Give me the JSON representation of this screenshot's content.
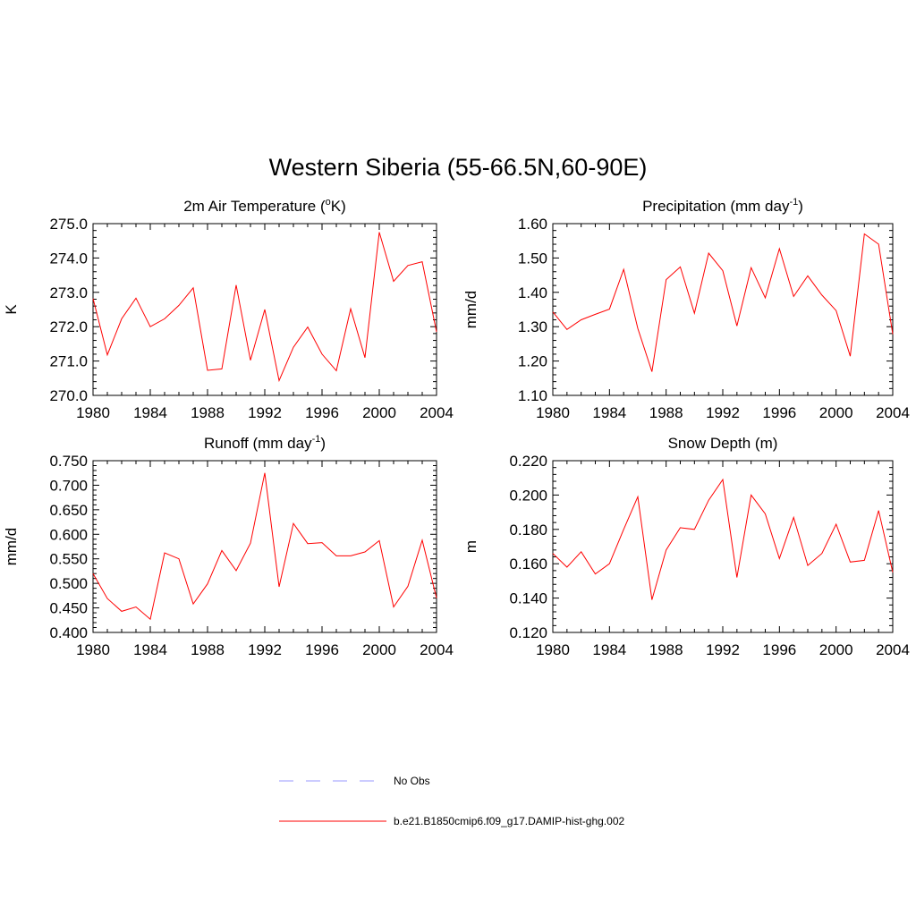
{
  "figure": {
    "title": "Western Siberia (55-66.5N,60-90E)"
  },
  "legend": {
    "entries": [
      {
        "label": "No Obs",
        "color": "#9999ff",
        "dash": "dashed"
      },
      {
        "label": "b.e21.B1850cmip6.f09_g17.DAMIP-hist-ghg.002",
        "color": "#ff0000",
        "dash": "solid"
      }
    ]
  },
  "chart_data": [
    {
      "type": "line",
      "panel": "top-left",
      "title_main": "2m Air Temperature (",
      "title_sup_pre": "o",
      "title_mid": "K",
      "title_sup_post": "",
      "title_end": ")",
      "xlabel": "",
      "ylabel": "K",
      "xlim": [
        1980,
        2004
      ],
      "ylim": [
        270.0,
        275.0
      ],
      "xticks": [
        "1980",
        "1984",
        "1988",
        "1992",
        "1996",
        "2000",
        "2004"
      ],
      "yticks": [
        "270.0",
        "271.0",
        "272.0",
        "273.0",
        "274.0",
        "275.0"
      ],
      "x": [
        1980,
        1981,
        1982,
        1983,
        1984,
        1985,
        1986,
        1987,
        1988,
        1989,
        1990,
        1991,
        1992,
        1993,
        1994,
        1995,
        1996,
        1997,
        1998,
        1999,
        2000,
        2001,
        2002,
        2003,
        2004
      ],
      "series": [
        {
          "name": "b.e21.B1850cmip6.f09_g17.DAMIP-hist-ghg.002",
          "color": "#ff0000",
          "values": [
            272.82,
            271.18,
            272.23,
            272.83,
            272.0,
            272.23,
            272.62,
            273.13,
            270.73,
            270.77,
            273.21,
            271.02,
            272.5,
            270.43,
            271.4,
            271.99,
            271.2,
            270.72,
            272.52,
            271.1,
            274.75,
            273.32,
            273.78,
            273.89,
            271.85
          ]
        }
      ]
    },
    {
      "type": "line",
      "panel": "top-right",
      "title_main": "Precipitation (mm day",
      "title_sup_pre": "",
      "title_mid": "",
      "title_sup_post": "-1",
      "title_end": ")",
      "xlabel": "",
      "ylabel": "mm/d",
      "xlim": [
        1980,
        2004
      ],
      "ylim": [
        1.1,
        1.6
      ],
      "xticks": [
        "1980",
        "1984",
        "1988",
        "1992",
        "1996",
        "2000",
        "2004"
      ],
      "yticks": [
        "1.10",
        "1.20",
        "1.30",
        "1.40",
        "1.50",
        "1.60"
      ],
      "x": [
        1980,
        1981,
        1982,
        1983,
        1984,
        1985,
        1986,
        1987,
        1988,
        1989,
        1990,
        1991,
        1992,
        1993,
        1994,
        1995,
        1996,
        1997,
        1998,
        1999,
        2000,
        2001,
        2002,
        2003,
        2004
      ],
      "series": [
        {
          "name": "b.e21.B1850cmip6.f09_g17.DAMIP-hist-ghg.002",
          "color": "#ff0000",
          "values": [
            1.343,
            1.292,
            1.32,
            1.336,
            1.351,
            1.467,
            1.295,
            1.169,
            1.437,
            1.474,
            1.339,
            1.514,
            1.463,
            1.302,
            1.472,
            1.384,
            1.527,
            1.388,
            1.448,
            1.392,
            1.347,
            1.214,
            1.57,
            1.54,
            1.278
          ]
        }
      ]
    },
    {
      "type": "line",
      "panel": "bottom-left",
      "title_main": "Runoff (mm day",
      "title_sup_pre": "",
      "title_mid": "",
      "title_sup_post": "-1",
      "title_end": ")",
      "xlabel": "",
      "ylabel": "mm/d",
      "xlim": [
        1980,
        2004
      ],
      "ylim": [
        0.4,
        0.75
      ],
      "xticks": [
        "1980",
        "1984",
        "1988",
        "1992",
        "1996",
        "2000",
        "2004"
      ],
      "yticks": [
        "0.400",
        "0.450",
        "0.500",
        "0.550",
        "0.600",
        "0.650",
        "0.700",
        "0.750"
      ],
      "x": [
        1980,
        1981,
        1982,
        1983,
        1984,
        1985,
        1986,
        1987,
        1988,
        1989,
        1990,
        1991,
        1992,
        1993,
        1994,
        1995,
        1996,
        1997,
        1998,
        1999,
        2000,
        2001,
        2002,
        2003,
        2004
      ],
      "series": [
        {
          "name": "b.e21.B1850cmip6.f09_g17.DAMIP-hist-ghg.002",
          "color": "#ff0000",
          "values": [
            0.52,
            0.469,
            0.443,
            0.452,
            0.427,
            0.562,
            0.55,
            0.458,
            0.499,
            0.567,
            0.526,
            0.582,
            0.725,
            0.493,
            0.622,
            0.581,
            0.583,
            0.556,
            0.556,
            0.564,
            0.587,
            0.452,
            0.494,
            0.588,
            0.47
          ]
        }
      ]
    },
    {
      "type": "line",
      "panel": "bottom-right",
      "title_main": "Snow Depth (m)",
      "title_sup_pre": "",
      "title_mid": "",
      "title_sup_post": "",
      "title_end": "",
      "xlabel": "",
      "ylabel": "m",
      "xlim": [
        1980,
        2004
      ],
      "ylim": [
        0.12,
        0.22
      ],
      "xticks": [
        "1980",
        "1984",
        "1988",
        "1992",
        "1996",
        "2000",
        "2004"
      ],
      "yticks": [
        "0.120",
        "0.140",
        "0.160",
        "0.180",
        "0.200",
        "0.220"
      ],
      "x": [
        1980,
        1981,
        1982,
        1983,
        1984,
        1985,
        1986,
        1987,
        1988,
        1989,
        1990,
        1991,
        1992,
        1993,
        1994,
        1995,
        1996,
        1997,
        1998,
        1999,
        2000,
        2001,
        2002,
        2003,
        2004
      ],
      "series": [
        {
          "name": "b.e21.B1850cmip6.f09_g17.DAMIP-hist-ghg.002",
          "color": "#ff0000",
          "values": [
            0.166,
            0.158,
            0.167,
            0.154,
            0.16,
            0.18,
            0.199,
            0.139,
            0.168,
            0.181,
            0.18,
            0.197,
            0.209,
            0.152,
            0.2,
            0.189,
            0.163,
            0.187,
            0.159,
            0.166,
            0.183,
            0.161,
            0.162,
            0.191,
            0.155
          ]
        }
      ]
    }
  ]
}
